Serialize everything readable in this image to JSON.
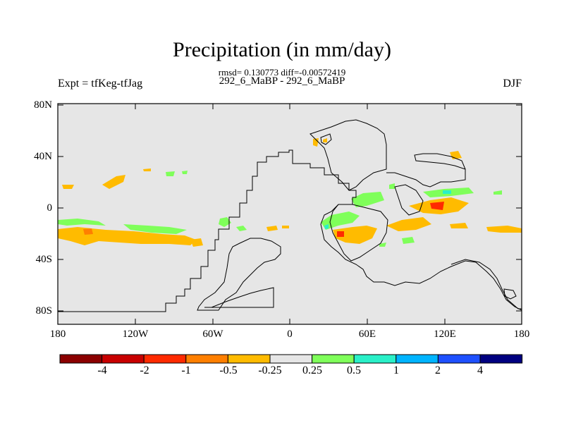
{
  "title": "Precipitation (in mm/day)",
  "subtitle": "rmsd= 0.130773 diff=-0.00572419",
  "center_label": "292_6_MaBP - 292_6_MaBP",
  "left_label": "Expt = tfKeg-tfJag",
  "right_label": "DJF",
  "lat_labels": [
    "80N",
    "40N",
    "0",
    "40S",
    "80S"
  ],
  "lon_labels": [
    "180",
    "120W",
    "60W",
    "0",
    "60E",
    "120E",
    "180"
  ],
  "colorbar": {
    "colors": [
      "#8b0000",
      "#c80000",
      "#ff2a00",
      "#ff7f00",
      "#ffbb00",
      "#e6e6e6",
      "#7fff5a",
      "#2af0c8",
      "#00b4ff",
      "#1e50ff",
      "#000080"
    ],
    "labels": [
      "-4",
      "-2",
      "-1",
      "-0.5",
      "-0.25",
      "0.25",
      "0.5",
      "1",
      "2",
      "4"
    ]
  },
  "colors": {
    "ocean_background": "#e6e6e6",
    "coastline": "#000000"
  }
}
